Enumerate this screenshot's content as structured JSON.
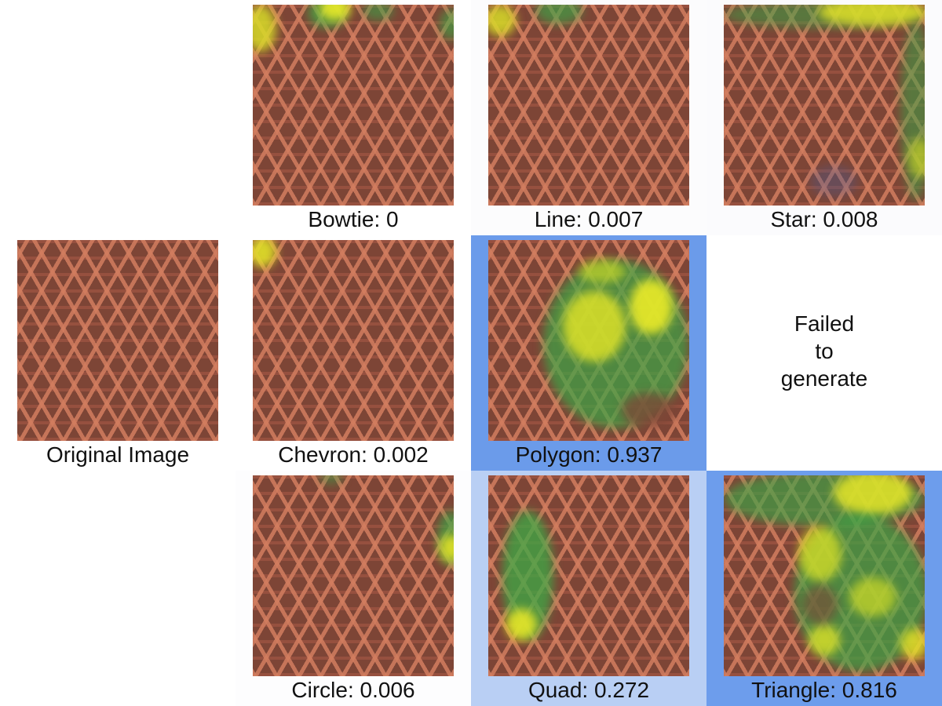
{
  "cells": {
    "original": {
      "caption": "Original Image",
      "background": "#ffffff"
    },
    "bowtie": {
      "shape": "Bowtie",
      "score": "0",
      "caption": "Bowtie: 0",
      "background": "#ffffff"
    },
    "line": {
      "shape": "Line",
      "score": "0.007",
      "caption": "Line: 0.007",
      "background": "#fcfcfd"
    },
    "star": {
      "shape": "Star",
      "score": "0.008",
      "caption": "Star: 0.008",
      "background": "#fbfbfd"
    },
    "chevron": {
      "shape": "Chevron",
      "score": "0.002",
      "caption": "Chevron: 0.002",
      "background": "#ffffff"
    },
    "polygon": {
      "shape": "Polygon",
      "score": "0.937",
      "caption": "Polygon: 0.937",
      "background": "#6b9bea"
    },
    "failed": {
      "message": "Failed to generate",
      "lines": [
        "Failed",
        "to",
        "generate"
      ],
      "background": "#ffffff"
    },
    "circle": {
      "shape": "Circle",
      "score": "0.006",
      "caption": "Circle: 0.006",
      "background": "#fdfdfe"
    },
    "quad": {
      "shape": "Quad",
      "score": "0.272",
      "caption": "Quad: 0.272",
      "background": "#b9cff4"
    },
    "triangle": {
      "shape": "Triangle",
      "score": "0.816",
      "caption": "Triangle: 0.816",
      "background": "#6d9dec"
    }
  }
}
